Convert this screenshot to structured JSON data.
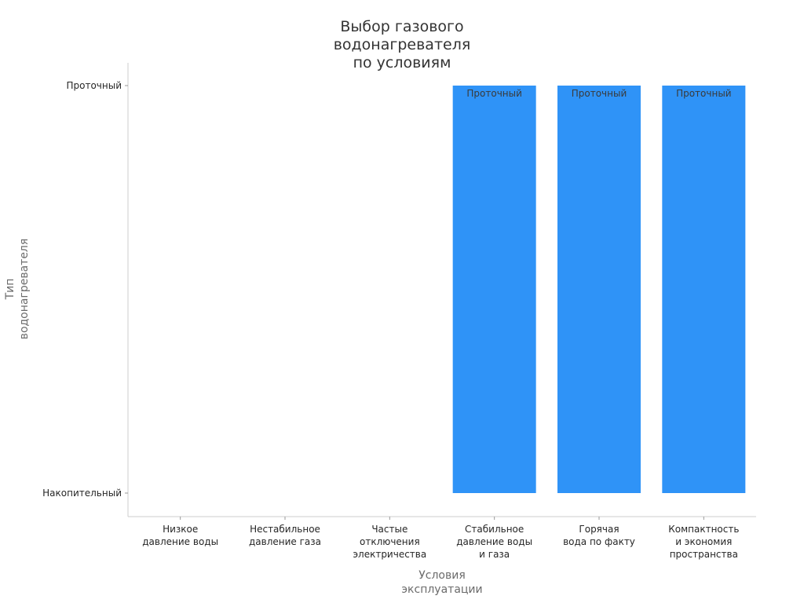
{
  "chart_data": {
    "type": "bar",
    "title_lines": [
      "Выбор газового",
      "водонагревателя",
      "по условиям"
    ],
    "xlabel_lines": [
      "Условия",
      "эксплуатации"
    ],
    "ylabel_lines": [
      "Тип",
      "водонагревателя"
    ],
    "y_categories": [
      "Накопительный",
      "Проточный"
    ],
    "categories": [
      [
        "Низкое",
        "давление воды"
      ],
      [
        "Нестабильное",
        "давление газа"
      ],
      [
        "Частые",
        "отключения",
        "электричества"
      ],
      [
        "Стабильное",
        "давление воды",
        "и газа"
      ],
      [
        "Горячая",
        "вода по факту"
      ],
      [
        "Компактность",
        "и экономия",
        "пространства"
      ]
    ],
    "values": [
      "Накопительный",
      "Накопительный",
      "Накопительный",
      "Проточный",
      "Проточный",
      "Проточный"
    ],
    "data_labels": [
      "",
      "",
      "",
      "Проточный",
      "Проточный",
      "Проточный"
    ],
    "colors": {
      "bar": "#2f93f7",
      "axis": "#cccccc"
    },
    "grid": false,
    "legend": "none"
  }
}
